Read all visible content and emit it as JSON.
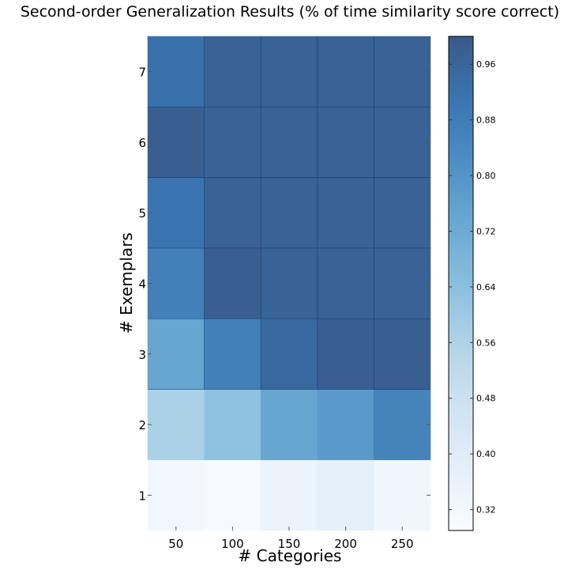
{
  "chart_data": {
    "type": "heatmap",
    "title": "Second-order Generalization Results (% of time similarity score correct)",
    "xlabel": "# Categories",
    "ylabel": "# Exemplars",
    "x_categories": [
      "50",
      "100",
      "150",
      "200",
      "250"
    ],
    "y_categories": [
      "1",
      "2",
      "3",
      "4",
      "5",
      "6",
      "7"
    ],
    "values": [
      [
        0.32,
        0.3,
        0.35,
        0.38,
        0.33
      ],
      [
        0.57,
        0.63,
        0.74,
        0.78,
        0.86
      ],
      [
        0.74,
        0.87,
        0.95,
        0.98,
        0.98
      ],
      [
        0.87,
        0.98,
        0.97,
        0.97,
        0.97
      ],
      [
        0.91,
        0.97,
        0.97,
        0.97,
        0.97
      ],
      [
        0.98,
        0.97,
        0.97,
        0.97,
        0.97
      ],
      [
        0.92,
        0.97,
        0.97,
        0.97,
        0.97
      ]
    ],
    "colorbar": {
      "min": 0.29,
      "max": 1.0,
      "ticks": [
        "0.32",
        "0.40",
        "0.48",
        "0.56",
        "0.64",
        "0.72",
        "0.80",
        "0.88",
        "0.96"
      ]
    },
    "colormap": "Blues",
    "cell_alpha": 0.8
  }
}
